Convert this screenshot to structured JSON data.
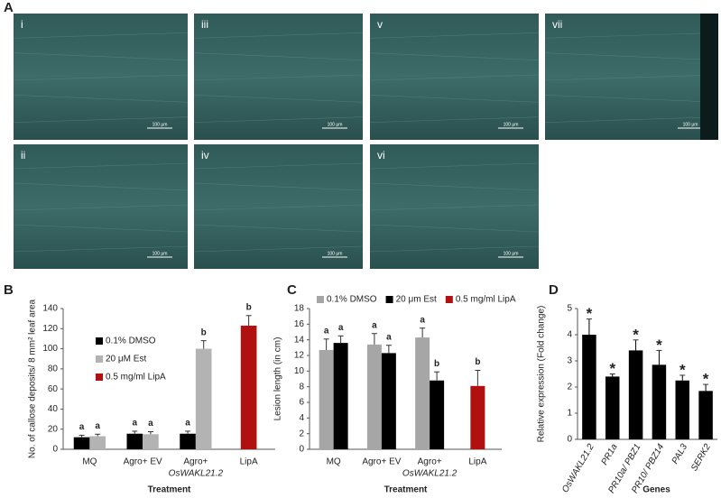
{
  "panel_a": {
    "panel": "A",
    "labels": [
      "i",
      "iii",
      "v",
      "vii",
      "ii",
      "iv",
      "vi"
    ],
    "scale_bar": "100 μm"
  },
  "chart_data": [
    {
      "type": "bar",
      "panel": "B",
      "ylabel": "No. of callose deposits/ 8 mm² leaf area",
      "xlabel": "Treatment",
      "categories": [
        [
          "MQ"
        ],
        [
          "Agro+ EV"
        ],
        [
          "Agro+",
          "OsWAKL21.2"
        ],
        [
          "LipA"
        ]
      ],
      "series": [
        {
          "name": "0.1% DMSO",
          "color": "#000000",
          "values": [
            12,
            15.5,
            15.5,
            null
          ],
          "errors": [
            2,
            2.5,
            2.5,
            null
          ],
          "letters": [
            "a",
            "a",
            "a",
            null
          ]
        },
        {
          "name": "20 μM Est",
          "color": "#b3b3b3",
          "values": [
            13,
            15,
            100,
            null
          ],
          "errors": [
            2,
            2.5,
            8,
            null
          ],
          "letters": [
            "a",
            "a",
            "b",
            null
          ]
        },
        {
          "name": "0.5 mg/ml LipA",
          "color": "#b01010",
          "values": [
            null,
            null,
            null,
            123
          ],
          "errors": [
            null,
            null,
            null,
            10
          ],
          "letters": [
            null,
            null,
            null,
            "b"
          ]
        }
      ],
      "ylim": [
        0,
        140
      ],
      "yticks": [
        0,
        20,
        40,
        60,
        80,
        100,
        120,
        140
      ],
      "legend": "upper left"
    },
    {
      "type": "bar",
      "panel": "C",
      "ylabel": "Lesion length (in cm)",
      "xlabel": "Treatment",
      "categories": [
        [
          "MQ"
        ],
        [
          "Agro+ EV"
        ],
        [
          "Agro+",
          "OsWAKL21.2"
        ],
        [
          "LipA"
        ]
      ],
      "series": [
        {
          "name": "0.1% DMSO",
          "color": "#a6a6a6",
          "values": [
            12.7,
            13.4,
            14.3,
            null
          ],
          "errors": [
            1.4,
            1.4,
            1.2,
            null
          ],
          "letters": [
            "a",
            "a",
            "a",
            null
          ]
        },
        {
          "name": "20 μm Est",
          "color": "#000000",
          "values": [
            13.6,
            12.3,
            8.8,
            null
          ],
          "errors": [
            0.9,
            1.0,
            1.1,
            null
          ],
          "letters": [
            "a",
            "a",
            "b",
            null
          ]
        },
        {
          "name": "0.5 mg/ml LipA",
          "color": "#b01010",
          "values": [
            null,
            null,
            null,
            8.1
          ],
          "errors": [
            null,
            null,
            null,
            2.0
          ],
          "letters": [
            null,
            null,
            null,
            "b"
          ]
        }
      ],
      "ylim": [
        0,
        18
      ],
      "yticks": [
        0,
        2,
        4,
        6,
        8,
        10,
        12,
        14,
        16,
        18
      ],
      "legend": "top"
    },
    {
      "type": "bar",
      "panel": "D",
      "ylabel": "Relative expression (Fold change)",
      "xlabel": "Genes",
      "categories": [
        [
          "OsWAKL21.2"
        ],
        [
          "PR1a"
        ],
        [
          "PR10a/ PBZ1"
        ],
        [
          "PR10/ PBZ14"
        ],
        [
          "PAL3"
        ],
        [
          "SERK2"
        ]
      ],
      "color": "#000000",
      "values": [
        4.0,
        2.4,
        3.4,
        2.85,
        2.25,
        1.85
      ],
      "errors": [
        0.6,
        0.1,
        0.4,
        0.55,
        0.2,
        0.25
      ],
      "annotations": [
        "*",
        "*",
        "*",
        "*",
        "*",
        "*"
      ],
      "ylim": [
        0,
        5
      ],
      "yticks": [
        0,
        1,
        2,
        3,
        4,
        5
      ]
    }
  ]
}
